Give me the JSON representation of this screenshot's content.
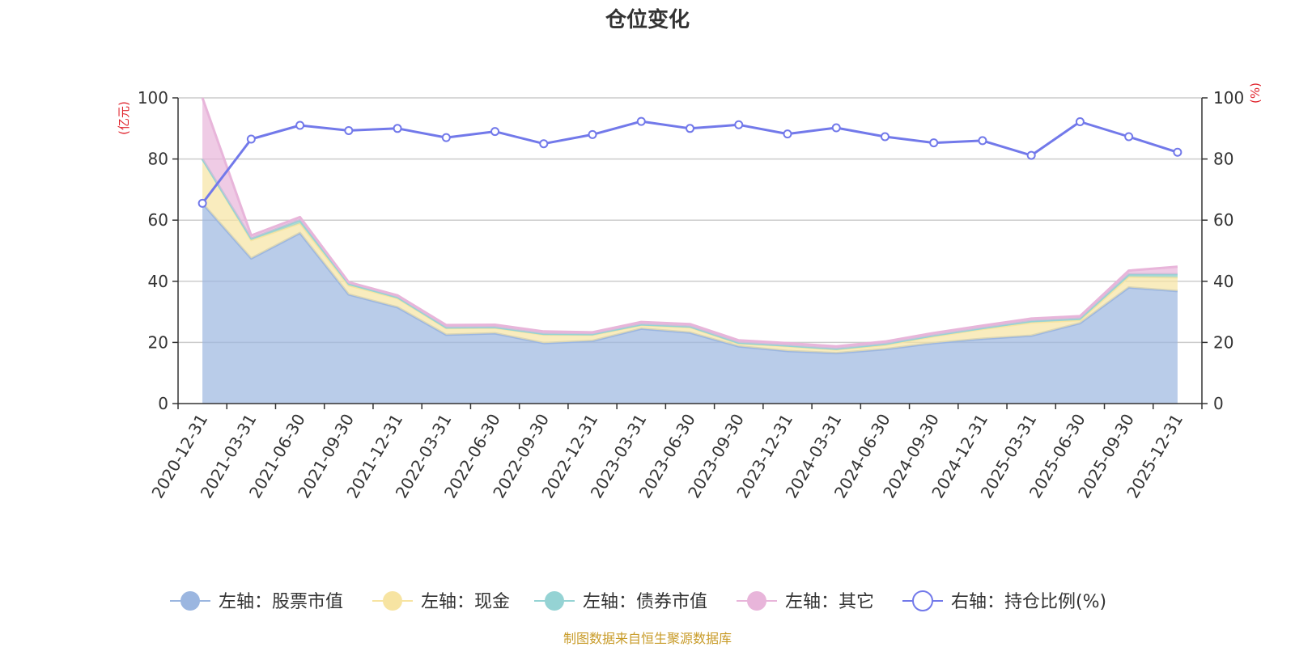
{
  "chart_data": {
    "type": "area",
    "title": "仓位变化",
    "left_axis_unit": "(亿元)",
    "right_axis_unit": "(%)",
    "ylim_left": [
      0,
      100
    ],
    "ylim_right": [
      0,
      100
    ],
    "y_ticks_left": [
      0,
      20,
      40,
      60,
      80,
      100
    ],
    "y_ticks_right": [
      0,
      20,
      40,
      60,
      80,
      100
    ],
    "categories": [
      "2020-12-31",
      "2021-03-31",
      "2021-06-30",
      "2021-09-30",
      "2021-12-31",
      "2022-03-31",
      "2022-06-30",
      "2022-09-30",
      "2022-12-31",
      "2023-03-31",
      "2023-06-30",
      "2023-09-30",
      "2023-12-31",
      "2024-03-31",
      "2024-06-30",
      "2024-09-30",
      "2024-12-31",
      "2025-03-31",
      "2025-06-30",
      "2025-09-30",
      "2025-12-31"
    ],
    "series": [
      {
        "name": "左轴：股票市值",
        "axis": "left",
        "color": "#9bb6e0",
        "values": [
          65.5,
          47.5,
          55.8,
          35.7,
          31.5,
          22.5,
          23.0,
          19.8,
          20.5,
          24.5,
          23.2,
          18.7,
          17.2,
          16.5,
          17.8,
          19.8,
          21.2,
          22.2,
          26.3,
          38.0,
          36.8
        ]
      },
      {
        "name": "左轴：现金",
        "axis": "left",
        "color": "#f7e4a2",
        "values": [
          14.5,
          6.0,
          3.2,
          3.0,
          3.0,
          2.2,
          1.8,
          2.8,
          2.0,
          1.2,
          1.8,
          1.0,
          1.6,
          1.2,
          1.4,
          2.2,
          3.2,
          4.3,
          1.0,
          3.5,
          4.5
        ]
      },
      {
        "name": "左轴：债券市值",
        "axis": "left",
        "color": "#95d3d4",
        "values": [
          0.0,
          0.5,
          1.0,
          0.5,
          0.3,
          0.2,
          0.2,
          0.2,
          0.2,
          0.2,
          0.2,
          0.2,
          0.2,
          0.2,
          0.3,
          0.3,
          0.3,
          0.5,
          0.5,
          0.8,
          1.0
        ]
      },
      {
        "name": "左轴：其它",
        "axis": "left",
        "color": "#e8b5da",
        "values": [
          20.0,
          1.0,
          1.0,
          0.5,
          0.6,
          0.8,
          0.8,
          0.8,
          0.6,
          0.8,
          0.8,
          0.8,
          0.8,
          0.8,
          0.8,
          0.8,
          0.8,
          0.8,
          0.8,
          1.2,
          2.5
        ]
      },
      {
        "name": "右轴：持仓比例(%)",
        "axis": "right",
        "color": "#7279ea",
        "values": [
          65.5,
          86.5,
          91.0,
          89.3,
          90.0,
          87.0,
          89.0,
          85.0,
          88.0,
          92.3,
          90.0,
          91.2,
          88.2,
          90.2,
          87.3,
          85.3,
          86.0,
          81.2,
          92.2,
          87.3,
          82.2
        ]
      }
    ],
    "legend_position": "bottom-center",
    "grid": true
  },
  "source_text": "制图数据来自恒生聚源数据库"
}
